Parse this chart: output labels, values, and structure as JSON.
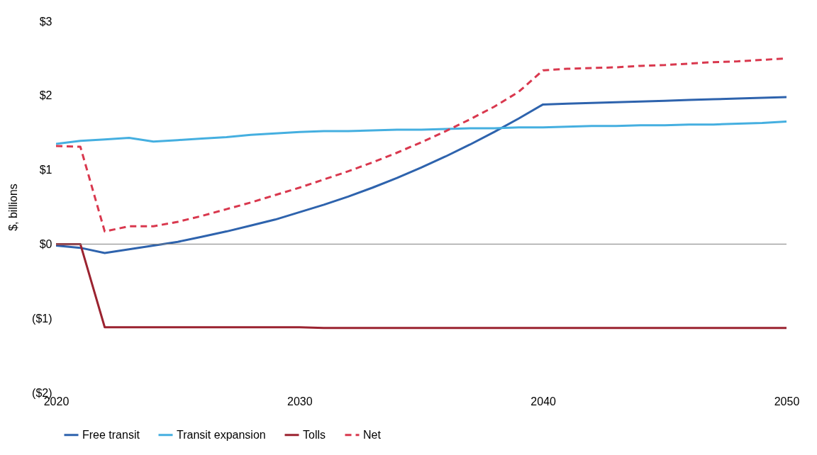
{
  "chart_data": {
    "type": "line",
    "ylabel": "$, billions",
    "x": [
      2020,
      2021,
      2022,
      2023,
      2024,
      2025,
      2026,
      2027,
      2028,
      2029,
      2030,
      2031,
      2032,
      2033,
      2034,
      2035,
      2036,
      2037,
      2038,
      2039,
      2040,
      2041,
      2042,
      2043,
      2044,
      2045,
      2046,
      2047,
      2048,
      2049,
      2050
    ],
    "series": [
      {
        "name": "Free transit",
        "color": "#2e63ad",
        "line_style": "solid",
        "values": [
          -0.02,
          -0.05,
          -0.12,
          -0.07,
          -0.02,
          0.03,
          0.1,
          0.17,
          0.25,
          0.33,
          0.43,
          0.53,
          0.64,
          0.76,
          0.89,
          1.03,
          1.18,
          1.34,
          1.51,
          1.69,
          1.88,
          1.89,
          1.9,
          1.91,
          1.92,
          1.93,
          1.94,
          1.95,
          1.96,
          1.97,
          1.98
        ]
      },
      {
        "name": "Transit expansion",
        "color": "#45afe0",
        "line_style": "solid",
        "values": [
          1.35,
          1.39,
          1.41,
          1.43,
          1.38,
          1.4,
          1.42,
          1.44,
          1.47,
          1.49,
          1.51,
          1.52,
          1.52,
          1.53,
          1.54,
          1.54,
          1.55,
          1.56,
          1.56,
          1.57,
          1.57,
          1.58,
          1.59,
          1.59,
          1.6,
          1.6,
          1.61,
          1.61,
          1.62,
          1.63,
          1.65
        ]
      },
      {
        "name": "Tolls",
        "color": "#9b2330",
        "line_style": "solid",
        "values": [
          0,
          0,
          -1.12,
          -1.12,
          -1.12,
          -1.12,
          -1.12,
          -1.12,
          -1.12,
          -1.12,
          -1.12,
          -1.13,
          -1.13,
          -1.13,
          -1.13,
          -1.13,
          -1.13,
          -1.13,
          -1.13,
          -1.13,
          -1.13,
          -1.13,
          -1.13,
          -1.13,
          -1.13,
          -1.13,
          -1.13,
          -1.13,
          -1.13,
          -1.13,
          -1.13
        ]
      },
      {
        "name": "Net",
        "color": "#d9384e",
        "line_style": "dashed",
        "values": [
          1.32,
          1.31,
          0.17,
          0.24,
          0.24,
          0.3,
          0.38,
          0.47,
          0.56,
          0.66,
          0.76,
          0.87,
          0.98,
          1.1,
          1.23,
          1.37,
          1.52,
          1.68,
          1.85,
          2.05,
          2.34,
          2.36,
          2.37,
          2.38,
          2.4,
          2.41,
          2.43,
          2.45,
          2.46,
          2.48,
          2.5
        ]
      }
    ],
    "xlim": [
      2020,
      2050
    ],
    "xticks": [
      2020,
      2030,
      2040,
      2050
    ],
    "ylim": [
      -2,
      3
    ],
    "yticks": [
      {
        "value": -2,
        "label": "($2)"
      },
      {
        "value": -1,
        "label": "($1)"
      },
      {
        "value": 0,
        "label": "$0"
      },
      {
        "value": 1,
        "label": "$1"
      },
      {
        "value": 2,
        "label": "$2"
      },
      {
        "value": 3,
        "label": "$3"
      }
    ],
    "ref_lines": [
      {
        "axis": "y",
        "value": 0,
        "color": "#808080"
      }
    ],
    "grid": false,
    "legend": "bottom"
  }
}
